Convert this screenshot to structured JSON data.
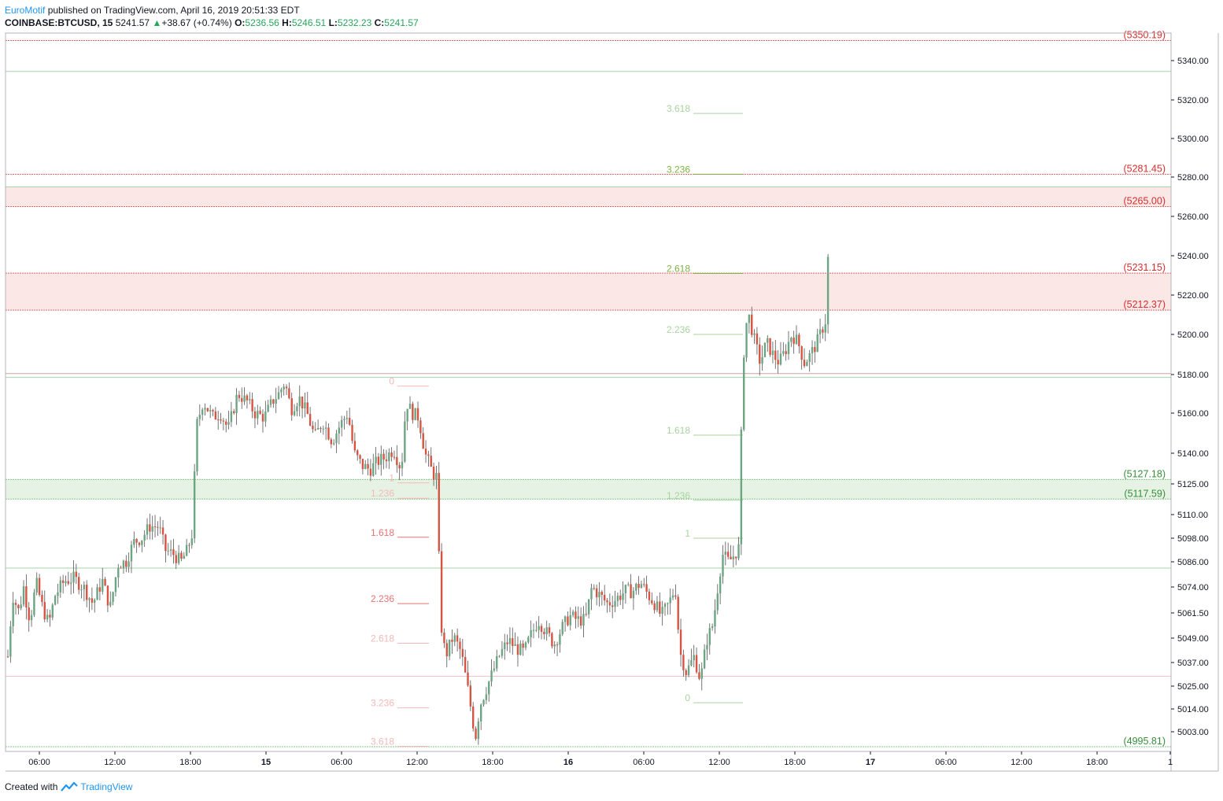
{
  "header": {
    "author": "EuroMotif",
    "published": " published on TradingView.com, April 16, 2019 20:51:33 EDT",
    "symbol": "COINBASE:BTCUSD, 15",
    "last": "5241.57",
    "change": "+38.67 (+0.74%)",
    "o_label": "O:",
    "o_value": "5236.56",
    "h_label": "H:",
    "h_value": "5246.51",
    "l_label": "L:",
    "l_value": "5232.23",
    "c_label": "C:",
    "c_value": "5241.57"
  },
  "footer": {
    "created_with": "Created with",
    "brand": "TradingView"
  },
  "colors": {
    "up": "#6ba583",
    "down": "#d75442",
    "resistance_zone": "#fbe7e6",
    "support_zone": "#e6f2e4",
    "red_line": "#e57373",
    "green_line": "#a5d6a7",
    "fib_red_strong": "#e57373",
    "fib_red_faint": "#f4b8b8",
    "fib_green_strong": "#7cb342",
    "fib_green_faint": "#a9d39e"
  },
  "chart_data": {
    "type": "candlestick",
    "title": "COINBASE:BTCUSD, 15",
    "y_axis": {
      "ticks": [
        "5340.00",
        "5320.00",
        "5300.00",
        "5280.00",
        "5260.00",
        "5240.00",
        "5220.00",
        "5200.00",
        "5180.00",
        "5160.00",
        "5140.00",
        "5125.00",
        "5110.00",
        "5098.00",
        "5086.00",
        "5074.00",
        "5061.50",
        "5049.00",
        "5037.00",
        "5025.00",
        "5014.00",
        "5003.00"
      ]
    },
    "x_axis": {
      "ticks": [
        "06:00",
        "12:00",
        "18:00",
        "15",
        "06:00",
        "12:00",
        "18:00",
        "16",
        "06:00",
        "12:00",
        "18:00",
        "17",
        "06:00",
        "12:00",
        "18:00",
        "1"
      ]
    },
    "price_levels": [
      {
        "label": "(5350.19)",
        "value": 5350.19,
        "color": "red"
      },
      {
        "label": "(5281.45)",
        "value": 5281.45,
        "color": "red"
      },
      {
        "label": "(5265.00)",
        "value": 5265.0,
        "color": "red"
      },
      {
        "label": "(5231.15)",
        "value": 5231.15,
        "color": "red"
      },
      {
        "label": "(5212.37)",
        "value": 5212.37,
        "color": "red"
      },
      {
        "label": "(5127.18)",
        "value": 5127.18,
        "color": "green"
      },
      {
        "label": "(5117.59)",
        "value": 5117.59,
        "color": "green"
      },
      {
        "label": "(4995.81)",
        "value": 4995.81,
        "color": "green"
      }
    ],
    "zones": [
      {
        "name": "resistance",
        "from": 5265.0,
        "to": 5275.0
      },
      {
        "name": "resistance",
        "from": 5212.37,
        "to": 5231.15
      },
      {
        "name": "support",
        "from": 5117.59,
        "to": 5127.18
      }
    ],
    "fib_down": {
      "levels": [
        {
          "label": "0",
          "value": 5174.0,
          "strength": "faint"
        },
        {
          "label": "1",
          "value": 5125.5,
          "strength": "faint"
        },
        {
          "label": "1.236",
          "value": 5118.0,
          "strength": "faint"
        },
        {
          "label": "1.618",
          "value": 5098.5,
          "strength": "strong"
        },
        {
          "label": "2.236",
          "value": 5066.0,
          "strength": "strong"
        },
        {
          "label": "2.618",
          "value": 5046.5,
          "strength": "faint"
        },
        {
          "label": "3.236",
          "value": 5014.5,
          "strength": "faint"
        },
        {
          "label": "3.618",
          "value": 4996.0,
          "strength": "faint"
        }
      ]
    },
    "fib_up": {
      "levels": [
        {
          "label": "0",
          "value": 5017.0,
          "strength": "faint"
        },
        {
          "label": "1",
          "value": 5098.0,
          "strength": "faint"
        },
        {
          "label": "1.236",
          "value": 5117.0,
          "strength": "faint"
        },
        {
          "label": "1.618",
          "value": 5149.0,
          "strength": "faint"
        },
        {
          "label": "2.236",
          "value": 5200.0,
          "strength": "faint"
        },
        {
          "label": "2.618",
          "value": 5231.0,
          "strength": "strong"
        },
        {
          "label": "3.236",
          "value": 5281.5,
          "strength": "strong"
        },
        {
          "label": "3.618",
          "value": 5313.0,
          "strength": "faint"
        }
      ]
    }
  }
}
